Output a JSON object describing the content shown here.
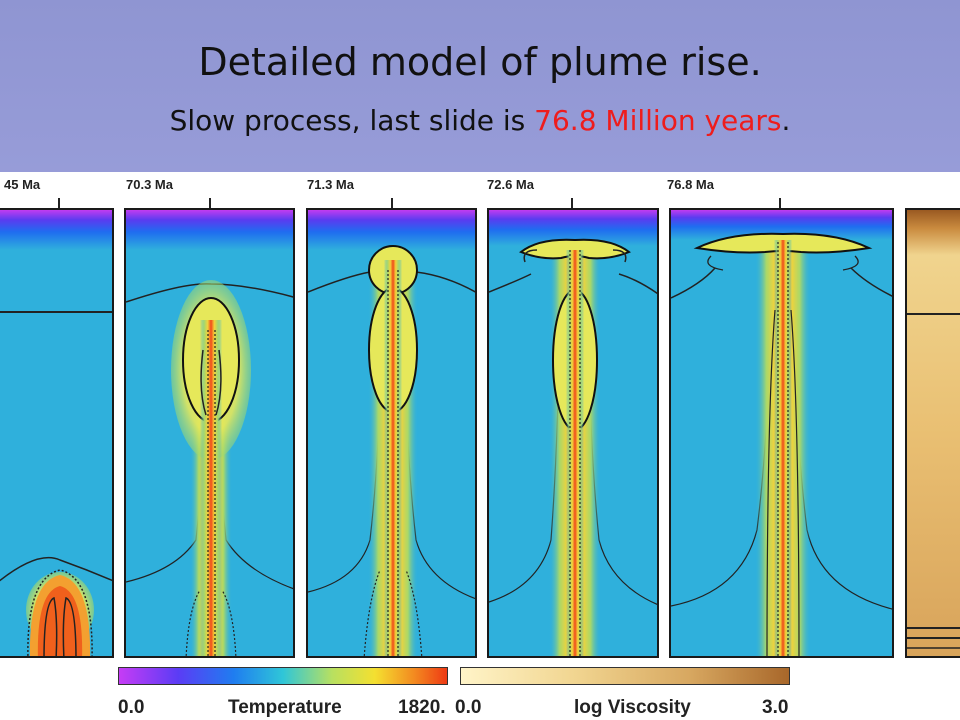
{
  "slide": {
    "title": "Detailed model of plume rise.",
    "subtitle_prefix": "Slow process, last slide is ",
    "subtitle_highlight": "76.8 Million years",
    "subtitle_suffix": "."
  },
  "frames": [
    {
      "label": "45 Ma"
    },
    {
      "label": "70.3 Ma"
    },
    {
      "label": "71.3 Ma"
    },
    {
      "label": "72.6 Ma"
    },
    {
      "label": "76.8 Ma"
    }
  ],
  "colorbars": {
    "temperature": {
      "label": "Temperature",
      "min": "0.0",
      "max": "1820."
    },
    "viscosity": {
      "label": "log Viscosity",
      "min": "0.0",
      "max": "3.0"
    }
  },
  "colors": {
    "header": "#979cd8",
    "highlight": "#ee1c1c",
    "mantle": "#2fb0dc",
    "plume_head": "#e6e85a",
    "plume_core": "#f04a1a"
  }
}
